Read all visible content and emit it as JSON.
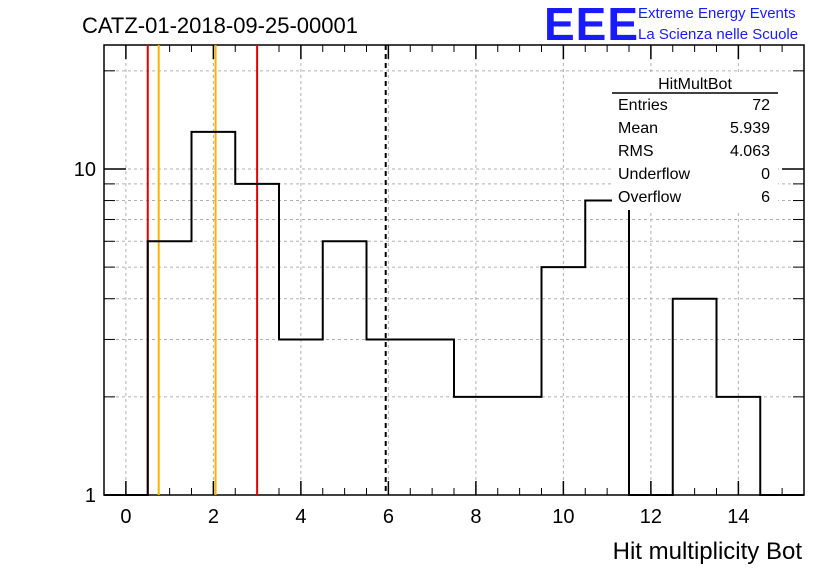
{
  "header": {
    "title": "CATZ-01-2018-09-25-00001",
    "logo_text": "EEE",
    "logo_line1": "Extreme Energy Events",
    "logo_line2": "La Scienza nelle Scuole"
  },
  "colors": {
    "histogram": "#000000",
    "red_lines": "#e00000",
    "orange_lines": "#ffb000",
    "logo": "#1a1aff",
    "grid": "#b0b0b0"
  },
  "chart_data": {
    "type": "bar",
    "histogram_style": "step",
    "name": "HitMultBot",
    "xlabel": "Hit multiplicity Bot",
    "ylabel": "",
    "xlim": [
      -0.5,
      15.5
    ],
    "ylim": [
      1,
      24
    ],
    "yscale": "log",
    "grid": true,
    "x_ticks": [
      0,
      2,
      4,
      6,
      8,
      10,
      12,
      14
    ],
    "y_ticks": [
      1,
      10
    ],
    "bin_width": 1,
    "bin_centers": [
      0,
      1,
      2,
      3,
      4,
      5,
      6,
      7,
      8,
      9,
      10,
      11,
      12,
      13,
      14,
      15
    ],
    "values": [
      0,
      6,
      13,
      9,
      3,
      6,
      3,
      3,
      2,
      2,
      5,
      8,
      0,
      4,
      2,
      0
    ],
    "vertical_lines": [
      {
        "x": 0.5,
        "color": "red",
        "style": "solid"
      },
      {
        "x": 0.75,
        "color": "orange",
        "style": "solid"
      },
      {
        "x": 2.05,
        "color": "orange",
        "style": "solid"
      },
      {
        "x": 3.0,
        "color": "red",
        "style": "solid"
      },
      {
        "x": 5.939,
        "color": "black",
        "style": "dashed"
      }
    ],
    "stats": {
      "title": "HitMultBot",
      "rows": [
        {
          "label": "Entries",
          "value": "72"
        },
        {
          "label": "Mean",
          "value": "5.939"
        },
        {
          "label": "RMS",
          "value": "4.063"
        },
        {
          "label": "Underflow",
          "value": "0"
        },
        {
          "label": "Overflow",
          "value": "6"
        }
      ]
    }
  }
}
